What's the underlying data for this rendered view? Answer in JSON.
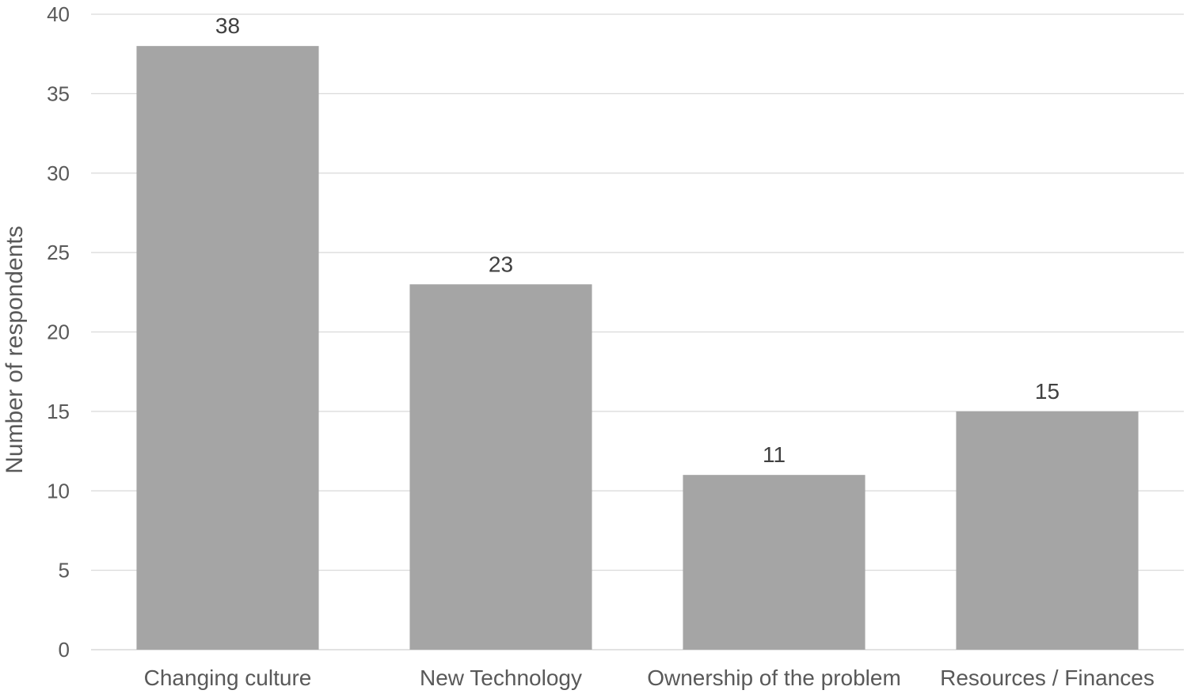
{
  "chart_data": {
    "type": "bar",
    "categories": [
      "Changing culture",
      "New Technology",
      "Ownership of the problem",
      "Resources / Finances"
    ],
    "values": [
      38,
      23,
      11,
      15
    ],
    "data_labels": [
      "38",
      "23",
      "11",
      "15"
    ],
    "title": "",
    "xlabel": "",
    "ylabel": "Number of respondents",
    "ylim": [
      0,
      40
    ],
    "yticks": [
      0,
      5,
      10,
      15,
      20,
      25,
      30,
      35,
      40
    ],
    "ytick_labels": [
      "0",
      "5",
      "10",
      "15",
      "20",
      "25",
      "30",
      "35",
      "40"
    ],
    "grid": true,
    "legend": "none",
    "colors": {
      "bar": "#a5a5a5",
      "grid": "#d9d9d9",
      "axis": "#d9d9d9",
      "tick_text": "#595959",
      "data_label_text": "#404040"
    }
  }
}
